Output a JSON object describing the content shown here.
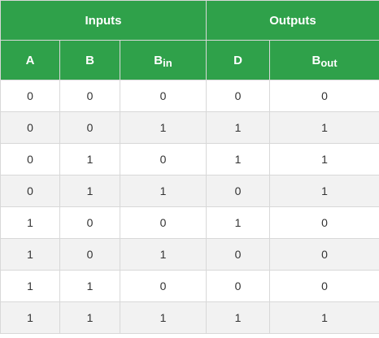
{
  "table": {
    "groups": {
      "inputs": "Inputs",
      "outputs": "Outputs"
    },
    "columns": {
      "a": {
        "main": "A",
        "sub": ""
      },
      "b": {
        "main": "B",
        "sub": ""
      },
      "bin": {
        "main": "B",
        "sub": "in"
      },
      "d": {
        "main": "D",
        "sub": ""
      },
      "bout": {
        "main": "B",
        "sub": "out"
      }
    },
    "rows": [
      [
        "0",
        "0",
        "0",
        "0",
        "0"
      ],
      [
        "0",
        "0",
        "1",
        "1",
        "1"
      ],
      [
        "0",
        "1",
        "0",
        "1",
        "1"
      ],
      [
        "0",
        "1",
        "1",
        "0",
        "1"
      ],
      [
        "1",
        "0",
        "0",
        "1",
        "0"
      ],
      [
        "1",
        "0",
        "1",
        "0",
        "0"
      ],
      [
        "1",
        "1",
        "0",
        "0",
        "0"
      ],
      [
        "1",
        "1",
        "1",
        "1",
        "1"
      ]
    ],
    "colors": {
      "header_bg": "#2fa14a",
      "header_text": "#ffffff",
      "stripe": "#f2f2f2",
      "border": "#d8d8d8"
    }
  }
}
